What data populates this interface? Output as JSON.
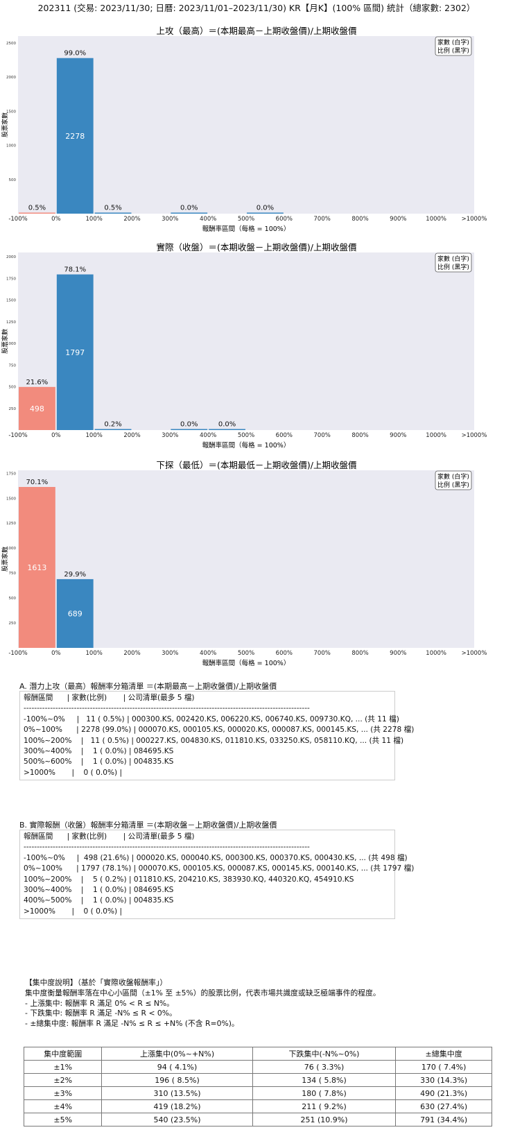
{
  "title": "202311 (交易: 2023/11/30; 日曆: 2023/11/01–2023/11/30) KR【月K】(100% 區間) 統計（總家數: 2302）",
  "legend": [
    "家數 (白字)",
    "比例 (黑字)"
  ],
  "chart_data": [
    {
      "type": "bar",
      "title": "上攻（最高）＝(本期最高－上期收盤價)/上期收盤價",
      "xlabel": "報酬率區間（每格 = 100%）",
      "ylabel": "股票家數",
      "x_tick_labels": [
        "-100%",
        "0%",
        "100%",
        "200%",
        "300%",
        "400%",
        "500%",
        "600%",
        "700%",
        "800%",
        "900%",
        "1000%",
        ">1000%"
      ],
      "ylim": [
        0,
        2600
      ],
      "yticks": [
        500,
        1000,
        1500,
        2000,
        2500
      ],
      "grid": false,
      "legend_position": "top-right",
      "bars": [
        {
          "bin": "-100%~0%",
          "value": 11,
          "percent": "0.5%",
          "count_label": "",
          "color": "#f28b7d"
        },
        {
          "bin": "0%~100%",
          "value": 2278,
          "percent": "99.0%",
          "count_label": "2278",
          "color": "#3a87c0"
        },
        {
          "bin": "100%~200%",
          "value": 11,
          "percent": "0.5%",
          "count_label": "",
          "color": "#3a87c0"
        },
        {
          "bin": "300%~400%",
          "value": 1,
          "percent": "0.0%",
          "count_label": "",
          "color": "#3a87c0"
        },
        {
          "bin": "500%~600%",
          "value": 1,
          "percent": "0.0%",
          "count_label": "",
          "color": "#3a87c0"
        }
      ]
    },
    {
      "type": "bar",
      "title": "實際（收盤）＝(本期收盤－上期收盤價)/上期收盤價",
      "xlabel": "報酬率區間（每格 = 100%）",
      "ylabel": "股票家數",
      "x_tick_labels": [
        "-100%",
        "0%",
        "100%",
        "200%",
        "300%",
        "400%",
        "500%",
        "600%",
        "700%",
        "800%",
        "900%",
        "1000%",
        ">1000%"
      ],
      "ylim": [
        0,
        2050
      ],
      "yticks": [
        250,
        500,
        750,
        1000,
        1250,
        1500,
        1750,
        2000
      ],
      "grid": false,
      "legend_position": "top-right",
      "bars": [
        {
          "bin": "-100%~0%",
          "value": 498,
          "percent": "21.6%",
          "count_label": "498",
          "color": "#f28b7d"
        },
        {
          "bin": "0%~100%",
          "value": 1797,
          "percent": "78.1%",
          "count_label": "1797",
          "color": "#3a87c0"
        },
        {
          "bin": "100%~200%",
          "value": 5,
          "percent": "0.2%",
          "count_label": "",
          "color": "#3a87c0"
        },
        {
          "bin": "300%~400%",
          "value": 1,
          "percent": "0.0%",
          "count_label": "",
          "color": "#3a87c0"
        },
        {
          "bin": "400%~500%",
          "value": 1,
          "percent": "0.0%",
          "count_label": "",
          "color": "#3a87c0"
        }
      ]
    },
    {
      "type": "bar",
      "title": "下探（最低）＝(本期最低－上期收盤價)/上期收盤價",
      "xlabel": "報酬率區間（每格 = 100%）",
      "ylabel": "股票家數",
      "x_tick_labels": [
        "-100%",
        "0%",
        "100%",
        "200%",
        "300%",
        "400%",
        "500%",
        "600%",
        "700%",
        "800%",
        "900%",
        "1000%",
        ">1000%"
      ],
      "ylim": [
        0,
        1780
      ],
      "yticks": [
        250,
        500,
        750,
        1000,
        1250,
        1500,
        1750
      ],
      "grid": false,
      "legend_position": "top-right",
      "bars": [
        {
          "bin": "-100%~0%",
          "value": 1613,
          "percent": "70.1%",
          "count_label": "1613",
          "color": "#f28b7d"
        },
        {
          "bin": "0%~100%",
          "value": 689,
          "percent": "29.9%",
          "count_label": "689",
          "color": "#3a87c0"
        }
      ]
    }
  ],
  "section_a": {
    "heading": "A. 潛力上攻（最高）報酬率分箱清單 ＝(本期最高－上期收盤價)/上期收盤價",
    "lines": [
      "報酬區間      | 家數(比例)       | 公司清單(最多 5 檔)",
      "------------------------------------------------------------------------------------------------------------",
      "-100%~0%     |   11 ( 0.5%) | 000300.KS, 002420.KS, 006220.KS, 006740.KS, 009730.KQ, ... (共 11 檔)",
      "0%~100%      | 2278 (99.0%) | 000070.KS, 000105.KS, 000020.KS, 000087.KS, 000145.KS, ... (共 2278 檔)",
      "100%~200%    |   11 ( 0.5%) | 000227.KS, 004830.KS, 011810.KS, 033250.KS, 058110.KQ, ... (共 11 檔)",
      "300%~400%    |    1 ( 0.0%) | 084695.KS",
      "500%~600%    |    1 ( 0.0%) | 004835.KS",
      ">1000%       |    0 ( 0.0%) |"
    ]
  },
  "section_b": {
    "heading": "B. 實際報酬（收盤）報酬率分箱清單 ＝(本期收盤－上期收盤價)/上期收盤價",
    "lines": [
      "報酬區間      | 家數(比例)       | 公司清單(最多 5 檔)",
      "------------------------------------------------------------------------------------------------------------",
      "-100%~0%     |  498 (21.6%) | 000020.KS, 000040.KS, 000300.KS, 000370.KS, 000430.KS, ... (共 498 檔)",
      "0%~100%      | 1797 (78.1%) | 000070.KS, 000105.KS, 000087.KS, 000145.KS, 000140.KS, ... (共 1797 檔)",
      "100%~200%    |    5 ( 0.2%) | 011810.KS, 204210.KS, 383930.KQ, 440320.KQ, 454910.KS",
      "300%~400%    |    1 ( 0.0%) | 084695.KS",
      "400%~500%    |    1 ( 0.0%) | 004835.KS",
      ">1000%       |    0 ( 0.0%) |"
    ]
  },
  "concentration": {
    "heading": "【集中度說明】（基於「實際收盤報酬率」）",
    "lines": [
      "集中度衡量報酬率落在中心小區間（±1% 至 ±5%）的股票比例，代表市場共識度或缺乏極端事件的程度。",
      "- 上漲集中: 報酬率 R 滿足 0% < R ≤ N%。",
      "- 下跌集中: 報酬率 R 滿足 -N% ≤ R < 0%。",
      "- ±總集中度: 報酬率 R 滿足 -N% ≤ R ≤ +N% (不含 R=0%)。"
    ],
    "headers": [
      "集中度範圍",
      "上漲集中(0%~+N%)",
      "下跌集中(-N%~0%)",
      "±總集中度"
    ],
    "rows": [
      [
        "±1%",
        "94 ( 4.1%)",
        "76 ( 3.3%)",
        "170 ( 7.4%)"
      ],
      [
        "±2%",
        "196 ( 8.5%)",
        "134 ( 5.8%)",
        "330 (14.3%)"
      ],
      [
        "±3%",
        "310 (13.5%)",
        "180 ( 7.8%)",
        "490 (21.3%)"
      ],
      [
        "±4%",
        "419 (18.2%)",
        "211 ( 9.2%)",
        "630 (27.4%)"
      ],
      [
        "±5%",
        "540 (23.5%)",
        "251 (10.9%)",
        "791 (34.4%)"
      ]
    ]
  }
}
